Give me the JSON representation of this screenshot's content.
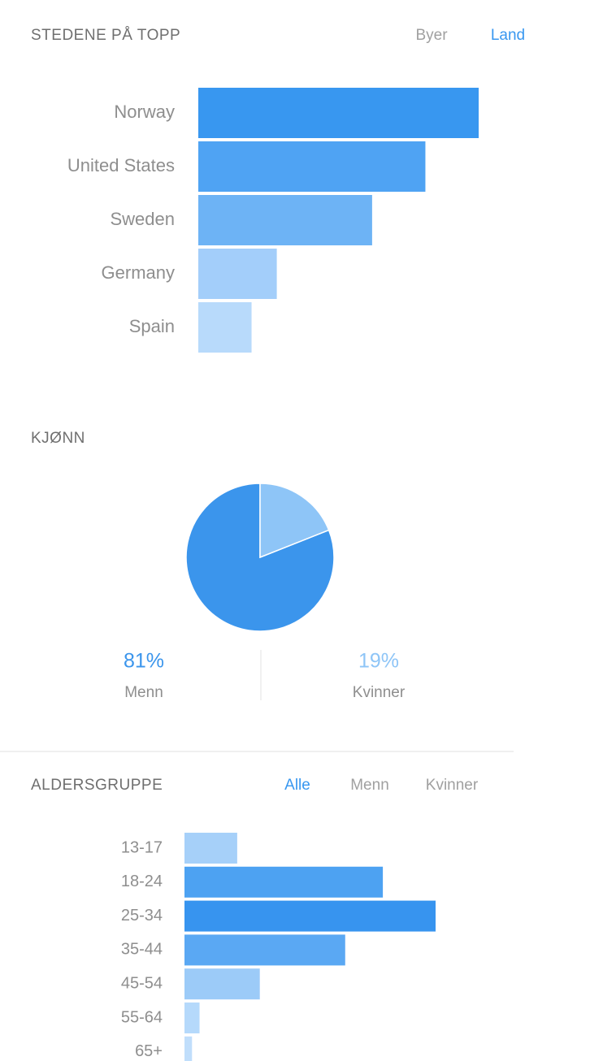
{
  "chart_data": [
    {
      "type": "bar",
      "title": "STEDENE PÅ TOPP",
      "tabs": [
        "Byer",
        "Land"
      ],
      "active_tab": 1,
      "categories": [
        "Norway",
        "United States",
        "Sweden",
        "Germany",
        "Spain"
      ],
      "values": [
        100,
        81,
        62,
        28,
        19
      ],
      "colors": [
        "#3897f0",
        "#4fa3f3",
        "#6db3f5",
        "#a3cefa",
        "#b8dafb"
      ],
      "xlim": [
        0,
        100
      ]
    },
    {
      "type": "pie",
      "title": "KJØNN",
      "categories": [
        "Menn",
        "Kvinner"
      ],
      "values": [
        81,
        19
      ],
      "value_labels": [
        "81%",
        "19%"
      ],
      "colors": [
        "#3b95ec",
        "#8ec5f7"
      ]
    },
    {
      "type": "bar",
      "title": "ALDERSGRUPPE",
      "tabs": [
        "Alle",
        "Menn",
        "Kvinner"
      ],
      "active_tab": 0,
      "categories": [
        "13-17",
        "18-24",
        "25-34",
        "35-44",
        "45-54",
        "55-64",
        "65+"
      ],
      "values": [
        21,
        79,
        100,
        64,
        30,
        6,
        3
      ],
      "colors": [
        "#a6d0f9",
        "#4da2f2",
        "#3794ef",
        "#5aa8f3",
        "#9ccbf8",
        "#b5d9fb",
        "#c0defb"
      ],
      "xlim": [
        0,
        100
      ]
    }
  ]
}
